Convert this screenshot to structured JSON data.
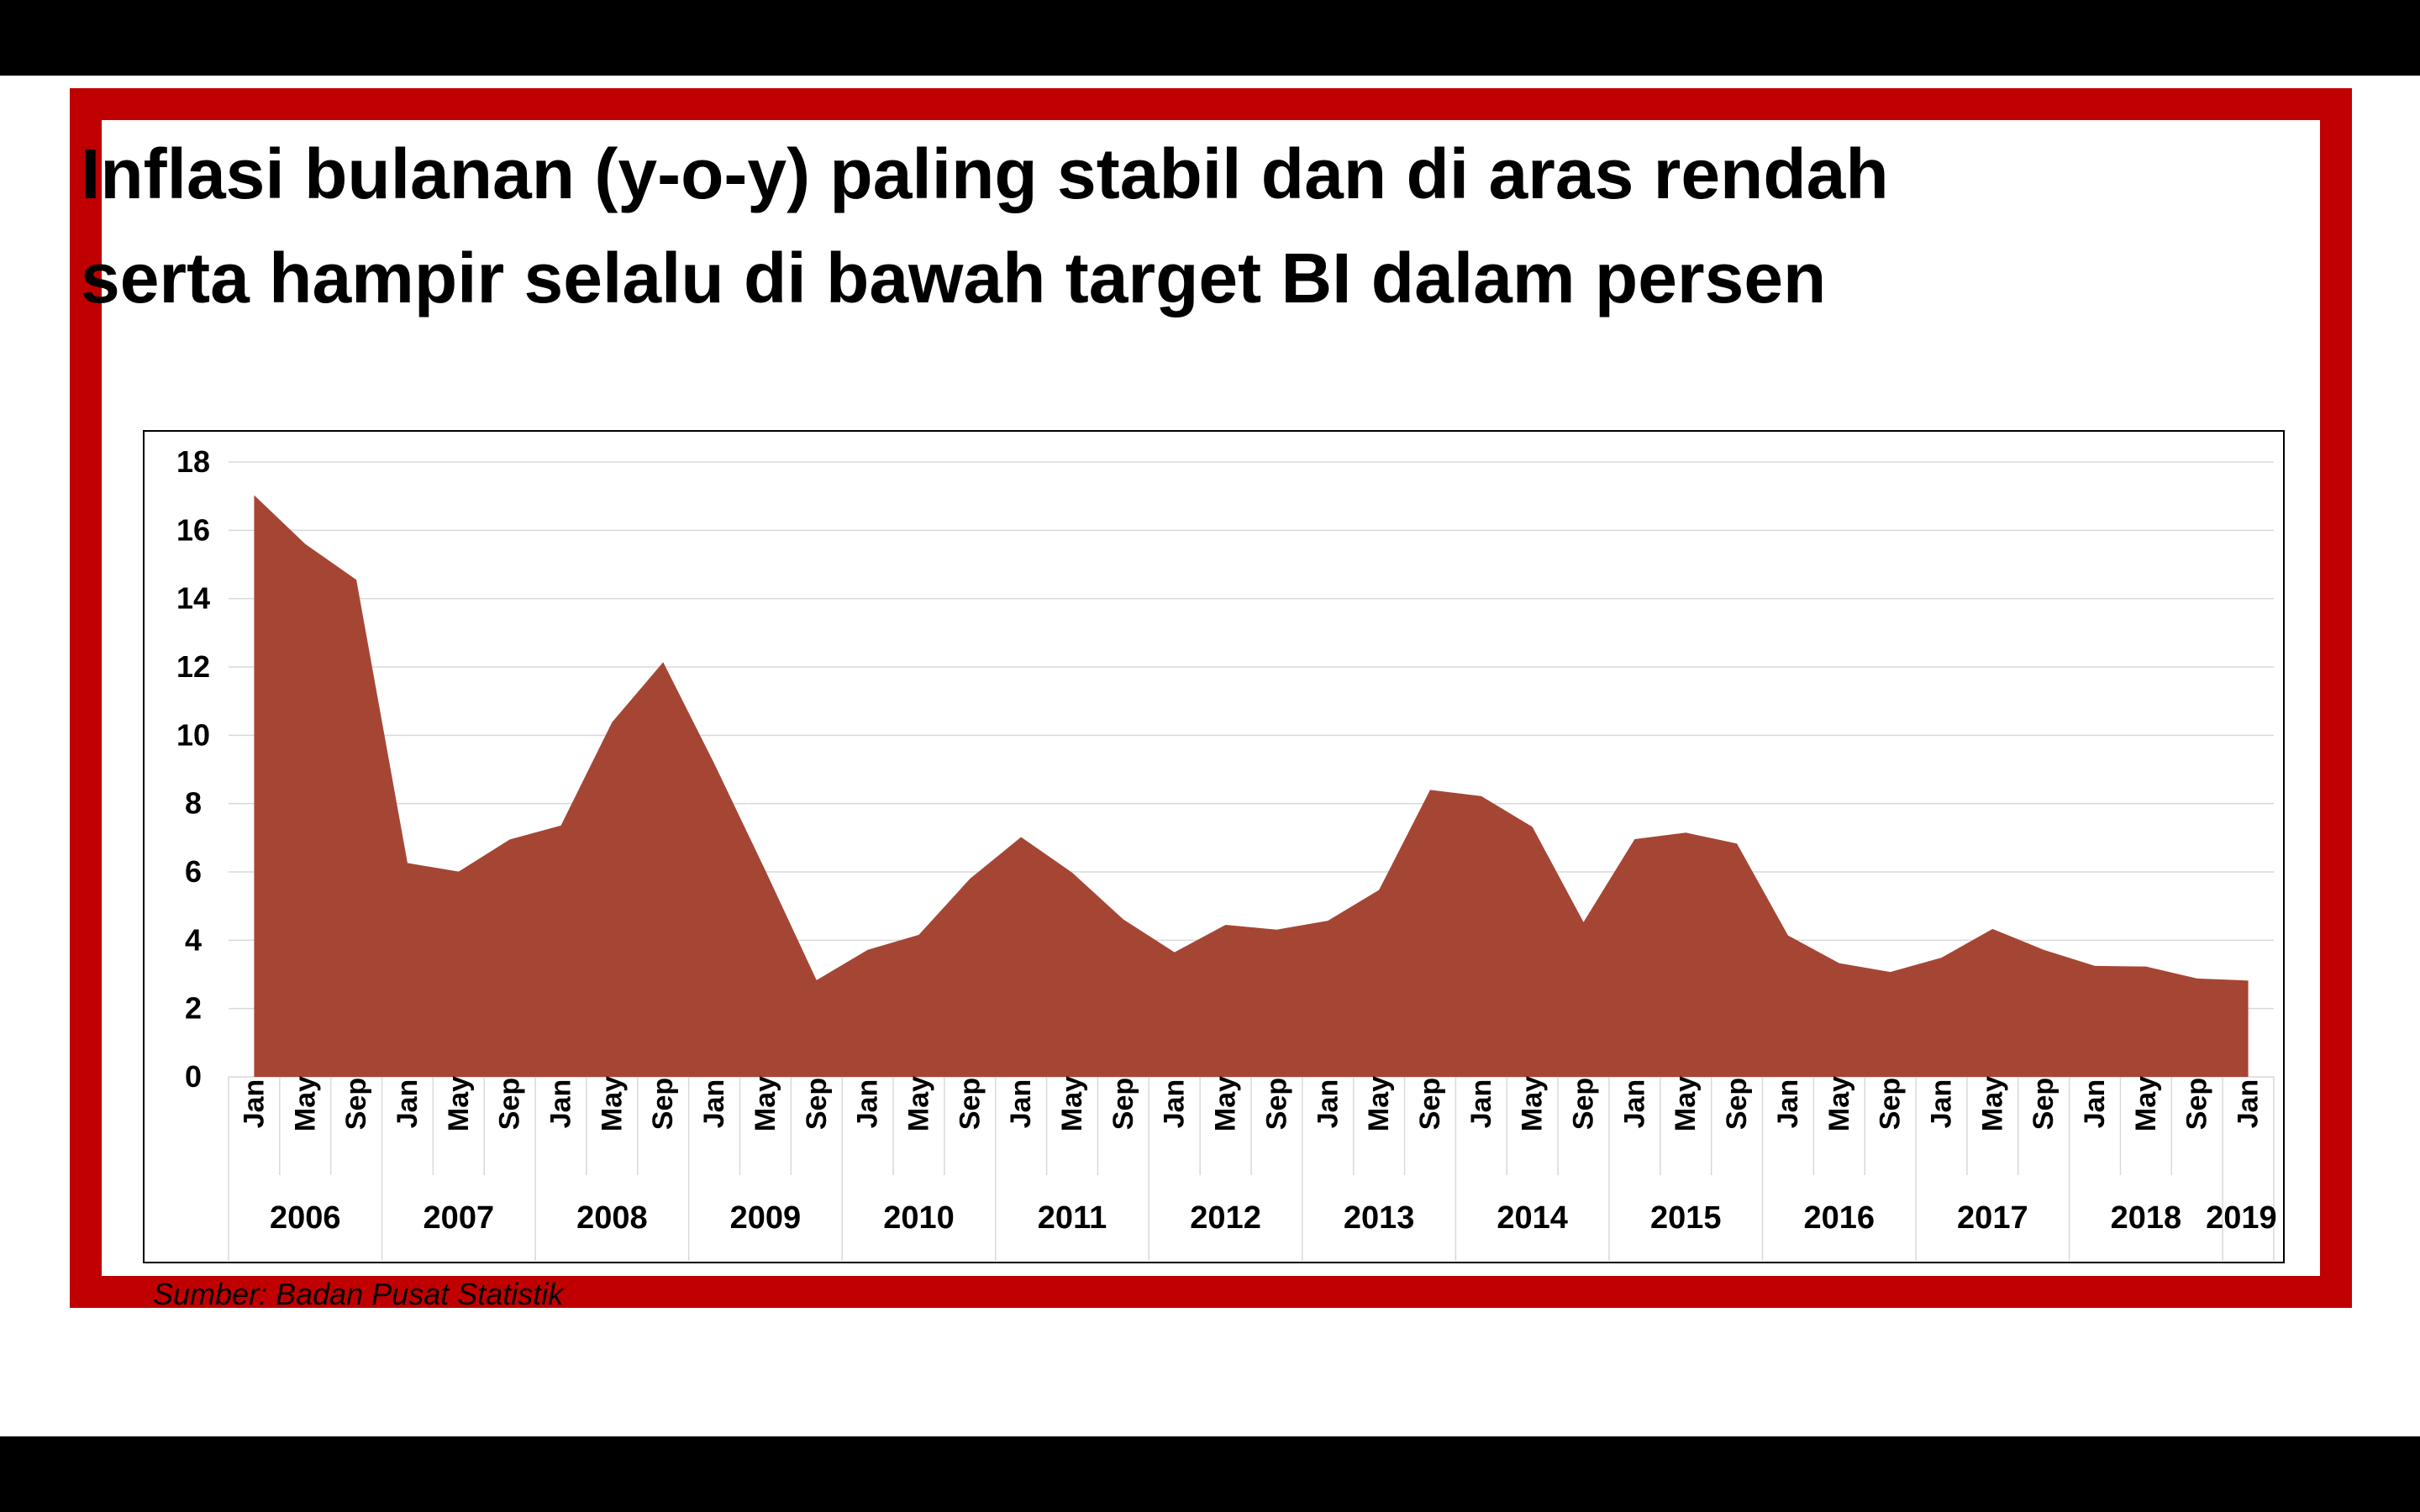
{
  "title_lines": [
    "Inflasi bulanan (y-o-y) paling stabil dan di aras rendah",
    "serta hampir selalu di bawah target BI dalam persen"
  ],
  "source": "Sumber: Badan Pusat Statistik",
  "colors": {
    "frame": "#c00000",
    "area": "#a54634",
    "grid": "#d9d9d9"
  },
  "chart_data": {
    "type": "area",
    "title": "",
    "xlabel": "",
    "ylabel": "",
    "ylim": [
      0,
      18
    ],
    "yticks": [
      0,
      2,
      4,
      6,
      8,
      10,
      12,
      14,
      16,
      18
    ],
    "grid": true,
    "legend": "none",
    "years": [
      "2006",
      "2007",
      "2008",
      "2009",
      "2010",
      "2011",
      "2012",
      "2013",
      "2014",
      "2015",
      "2016",
      "2017",
      "2018",
      "2019"
    ],
    "x": [
      {
        "month": "Jan",
        "year": "2006"
      },
      {
        "month": "May",
        "year": "2006"
      },
      {
        "month": "Sep",
        "year": "2006"
      },
      {
        "month": "Jan",
        "year": "2007"
      },
      {
        "month": "May",
        "year": "2007"
      },
      {
        "month": "Sep",
        "year": "2007"
      },
      {
        "month": "Jan",
        "year": "2008"
      },
      {
        "month": "May",
        "year": "2008"
      },
      {
        "month": "Sep",
        "year": "2008"
      },
      {
        "month": "Jan",
        "year": "2009"
      },
      {
        "month": "May",
        "year": "2009"
      },
      {
        "month": "Sep",
        "year": "2009"
      },
      {
        "month": "Jan",
        "year": "2010"
      },
      {
        "month": "May",
        "year": "2010"
      },
      {
        "month": "Sep",
        "year": "2010"
      },
      {
        "month": "Jan",
        "year": "2011"
      },
      {
        "month": "May",
        "year": "2011"
      },
      {
        "month": "Sep",
        "year": "2011"
      },
      {
        "month": "Jan",
        "year": "2012"
      },
      {
        "month": "May",
        "year": "2012"
      },
      {
        "month": "Sep",
        "year": "2012"
      },
      {
        "month": "Jan",
        "year": "2013"
      },
      {
        "month": "May",
        "year": "2013"
      },
      {
        "month": "Sep",
        "year": "2013"
      },
      {
        "month": "Jan",
        "year": "2014"
      },
      {
        "month": "May",
        "year": "2014"
      },
      {
        "month": "Sep",
        "year": "2014"
      },
      {
        "month": "Jan",
        "year": "2015"
      },
      {
        "month": "May",
        "year": "2015"
      },
      {
        "month": "Sep",
        "year": "2015"
      },
      {
        "month": "Jan",
        "year": "2016"
      },
      {
        "month": "May",
        "year": "2016"
      },
      {
        "month": "Sep",
        "year": "2016"
      },
      {
        "month": "Jan",
        "year": "2017"
      },
      {
        "month": "May",
        "year": "2017"
      },
      {
        "month": "Sep",
        "year": "2017"
      },
      {
        "month": "Jan",
        "year": "2018"
      },
      {
        "month": "May",
        "year": "2018"
      },
      {
        "month": "Sep",
        "year": "2018"
      },
      {
        "month": "Jan",
        "year": "2019"
      }
    ],
    "values": [
      17.03,
      15.6,
      14.55,
      6.26,
      6.01,
      6.95,
      7.36,
      10.38,
      12.14,
      9.17,
      6.04,
      2.83,
      3.72,
      4.16,
      5.8,
      7.02,
      5.98,
      4.61,
      3.65,
      4.45,
      4.31,
      4.57,
      5.47,
      8.4,
      8.22,
      7.32,
      4.53,
      6.96,
      7.15,
      6.83,
      4.14,
      3.33,
      3.07,
      3.49,
      4.33,
      3.72,
      3.25,
      3.23,
      2.88,
      2.82
    ]
  }
}
